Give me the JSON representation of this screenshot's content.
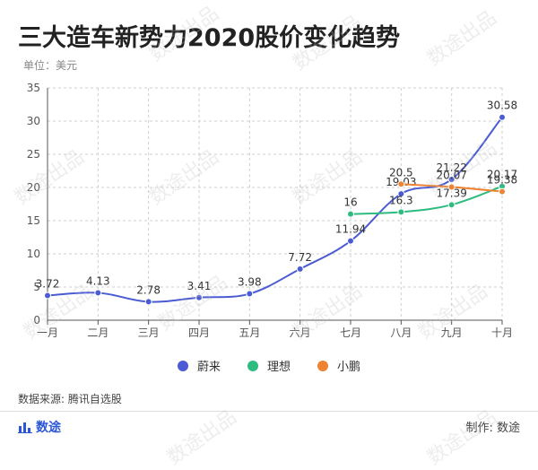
{
  "title": "三大造车新势力2020股价变化趋势",
  "unit_label": "单位：美元",
  "source_label": "数据来源: 腾讯自选股",
  "brand_label": "数途",
  "credit_label": "制作: 数途",
  "watermark_text": "数途出品",
  "chart_data": {
    "type": "line",
    "title": "三大造车新势力2020股价变化趋势",
    "ylabel": "单位：美元",
    "xlabel": "",
    "ylim": [
      0,
      35
    ],
    "yticks": [
      0,
      5,
      10,
      15,
      20,
      25,
      30,
      35
    ],
    "grid": true,
    "legend_position": "bottom-center",
    "categories": [
      "一月",
      "二月",
      "三月",
      "四月",
      "五月",
      "六月",
      "七月",
      "八月",
      "九月",
      "十月"
    ],
    "series": [
      {
        "name": "蔚来",
        "color": "#4a5bd4",
        "values": [
          3.72,
          4.13,
          2.78,
          3.41,
          3.98,
          7.72,
          11.94,
          19.03,
          21.22,
          30.58
        ]
      },
      {
        "name": "理想",
        "color": "#2dbb7f",
        "values": [
          null,
          null,
          null,
          null,
          null,
          null,
          16,
          16.3,
          17.39,
          20.17
        ]
      },
      {
        "name": "小鹏",
        "color": "#ee8433",
        "values": [
          null,
          null,
          null,
          null,
          null,
          null,
          null,
          20.5,
          20.07,
          19.38
        ]
      }
    ]
  }
}
